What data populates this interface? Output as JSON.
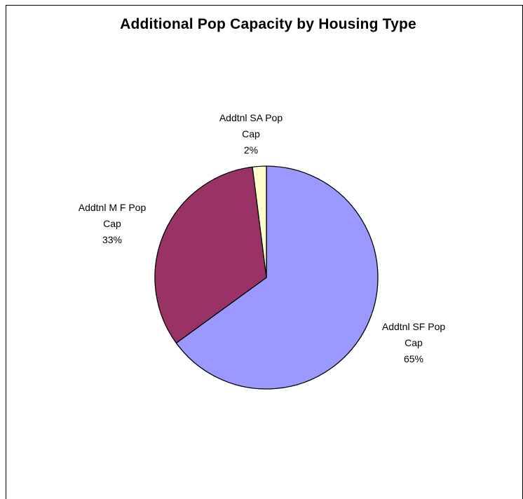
{
  "chart_data": {
    "type": "pie",
    "title": "Additional Pop Capacity by Housing Type",
    "categories": [
      "Addtnl SF Pop Cap",
      "Addtnl MF Pop Cap",
      "Addtnl SA Pop Cap"
    ],
    "values": [
      65,
      33,
      2
    ],
    "unit": "%",
    "slices": [
      {
        "name_line1": "Addtnl SF Pop",
        "name_line2": "Cap",
        "percent_label": "65%",
        "value": 65,
        "color": "#9999ff"
      },
      {
        "name_line1": "Addtnl M F Pop",
        "name_line2": "Cap",
        "percent_label": "33%",
        "value": 33,
        "color": "#993366"
      },
      {
        "name_line1": "Addtnl SA Pop",
        "name_line2": "Cap",
        "percent_label": "2%",
        "value": 2,
        "color": "#ffffcc"
      }
    ],
    "legend": "none"
  }
}
